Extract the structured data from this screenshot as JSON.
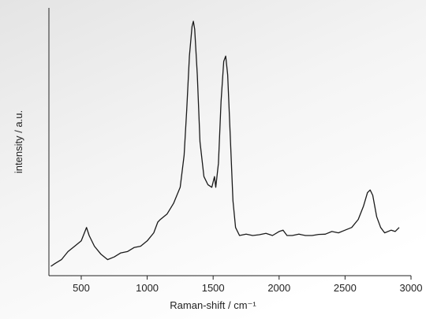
{
  "chart_data": {
    "type": "line",
    "x_label": "Raman-shift / cm⁻¹",
    "y_label": "intensity / a.u.",
    "xlim": [
      255,
      3000
    ],
    "xticks": [
      500,
      1000,
      1500,
      2000,
      2500,
      3000
    ],
    "ylim": [
      0,
      100
    ],
    "series": [
      {
        "color": "#1a1a1a",
        "x": [
          270,
          300,
          350,
          400,
          450,
          500,
          540,
          560,
          600,
          650,
          700,
          750,
          800,
          850,
          900,
          950,
          1000,
          1050,
          1080,
          1100,
          1150,
          1200,
          1250,
          1280,
          1300,
          1320,
          1340,
          1350,
          1360,
          1380,
          1400,
          1430,
          1460,
          1490,
          1510,
          1520,
          1540,
          1560,
          1580,
          1595,
          1610,
          1630,
          1650,
          1670,
          1700,
          1750,
          1800,
          1850,
          1900,
          1950,
          2000,
          2030,
          2060,
          2100,
          2150,
          2200,
          2250,
          2300,
          2350,
          2400,
          2450,
          2500,
          2550,
          2600,
          2640,
          2670,
          2690,
          2710,
          2740,
          2770,
          2800,
          2850,
          2880,
          2910
        ],
        "values": [
          3.5,
          4.5,
          6,
          9,
          11,
          13,
          18,
          15,
          11,
          8,
          6,
          7,
          8.5,
          9,
          10.5,
          11,
          13,
          16,
          20,
          21,
          23,
          27,
          33,
          45,
          62,
          82,
          93,
          95,
          92,
          75,
          50,
          37,
          34,
          33,
          37,
          33,
          42,
          65,
          80,
          82,
          75,
          52,
          28,
          18,
          15,
          15.5,
          15,
          15.3,
          15.8,
          15,
          16.5,
          17,
          15,
          15,
          15.5,
          15,
          15,
          15.4,
          15.5,
          16.5,
          16,
          17,
          18,
          21,
          26,
          31,
          32,
          30,
          22,
          18,
          16,
          17,
          16.5,
          18
        ]
      }
    ]
  }
}
